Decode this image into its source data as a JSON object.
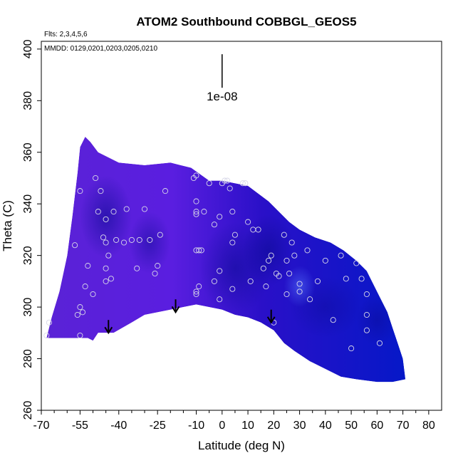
{
  "chart_data": {
    "type": "heatmap",
    "title": "ATOM2 Southbound COBBGL_GEOS5",
    "annotations": {
      "flights": "Flts: 2,3,4,5,6",
      "dates": "MMDD: 0129,0201,0203,0205,0210",
      "scale_label": "1e-08"
    },
    "xlabel": "Latitude (deg N)",
    "ylabel": "Theta (C)",
    "xlim": [
      -70,
      85
    ],
    "ylim": [
      260,
      403
    ],
    "xticks": [
      -70,
      -55,
      -40,
      -25,
      -10,
      0,
      10,
      20,
      30,
      40,
      50,
      60,
      70,
      80
    ],
    "yticks": [
      260,
      280,
      300,
      320,
      340,
      360,
      380,
      400
    ],
    "upper_boundary": [
      [
        -55,
        362
      ],
      [
        -53,
        366
      ],
      [
        -51,
        364
      ],
      [
        -48,
        360
      ],
      [
        -40,
        356
      ],
      [
        -30,
        355
      ],
      [
        -20,
        356
      ],
      [
        -12,
        354
      ],
      [
        -5,
        349
      ],
      [
        0,
        349
      ],
      [
        5,
        348
      ],
      [
        10,
        347
      ],
      [
        14,
        344
      ],
      [
        18,
        341
      ],
      [
        22,
        337
      ],
      [
        26,
        333
      ],
      [
        30,
        330
      ],
      [
        36,
        327
      ],
      [
        42,
        325
      ],
      [
        47,
        322
      ],
      [
        52,
        318
      ],
      [
        56,
        314
      ],
      [
        58,
        310
      ],
      [
        61,
        304
      ],
      [
        64,
        298
      ],
      [
        66,
        292
      ],
      [
        68,
        286
      ],
      [
        70,
        280
      ],
      [
        71,
        272
      ]
    ],
    "lower_boundary": [
      [
        71,
        272
      ],
      [
        66,
        271
      ],
      [
        60,
        271
      ],
      [
        52,
        272
      ],
      [
        46,
        273
      ],
      [
        40,
        276
      ],
      [
        34,
        279
      ],
      [
        28,
        283
      ],
      [
        24,
        286
      ],
      [
        20,
        291
      ],
      [
        15,
        294
      ],
      [
        10,
        296
      ],
      [
        5,
        297
      ],
      [
        0,
        299
      ],
      [
        -5,
        300
      ],
      [
        -10,
        301
      ],
      [
        -20,
        299
      ],
      [
        -30,
        297
      ],
      [
        -35,
        294
      ],
      [
        -42,
        290
      ],
      [
        -48,
        290
      ],
      [
        -50,
        287
      ],
      [
        -52,
        288
      ],
      [
        -68,
        288
      ],
      [
        -66,
        296
      ],
      [
        -63,
        306
      ],
      [
        -60,
        320
      ],
      [
        -58,
        335
      ],
      [
        -56,
        352
      ],
      [
        -55,
        362
      ]
    ],
    "dark_regions": [
      {
        "x": -45,
        "y": 335,
        "rx": 10,
        "ry": 16,
        "strength": 0.55
      },
      {
        "x": -28,
        "y": 325,
        "rx": 8,
        "ry": 12,
        "strength": 0.45
      },
      {
        "x": 5,
        "y": 315,
        "rx": 14,
        "ry": 18,
        "strength": 0.5
      },
      {
        "x": 18,
        "y": 322,
        "rx": 10,
        "ry": 14,
        "strength": 0.55
      },
      {
        "x": 40,
        "y": 300,
        "rx": 14,
        "ry": 12,
        "strength": 0.35
      },
      {
        "x": 60,
        "y": 295,
        "rx": 8,
        "ry": 10,
        "strength": 0.4
      }
    ],
    "light_regions": [
      {
        "x": 30,
        "y": 308,
        "rx": 6,
        "ry": 8,
        "strength": 0.5
      }
    ],
    "scale_bar": {
      "x": 0,
      "y_top": 398,
      "y_bottom": 385
    },
    "arrows": [
      {
        "x": -44,
        "y_top": 295,
        "y_bottom": 290
      },
      {
        "x": -18,
        "y_top": 303,
        "y_bottom": 298
      },
      {
        "x": 19,
        "y_top": 299,
        "y_bottom": 294
      }
    ],
    "points": [
      [
        -68,
        289
      ],
      [
        -67,
        294
      ],
      [
        -57,
        324
      ],
      [
        -55,
        345
      ],
      [
        -49,
        350
      ],
      [
        -47,
        345
      ],
      [
        -48,
        337
      ],
      [
        -45,
        334
      ],
      [
        -42,
        337
      ],
      [
        -46,
        327
      ],
      [
        -45,
        325
      ],
      [
        -44,
        320
      ],
      [
        -45,
        315
      ],
      [
        -43,
        311
      ],
      [
        -45,
        310
      ],
      [
        -50,
        305
      ],
      [
        -52,
        316
      ],
      [
        -53,
        308
      ],
      [
        -54,
        298
      ],
      [
        -55,
        300
      ],
      [
        -56,
        297
      ],
      [
        -55,
        289
      ],
      [
        -41,
        326
      ],
      [
        -38,
        325
      ],
      [
        -37,
        338
      ],
      [
        -35,
        326
      ],
      [
        -33,
        315
      ],
      [
        -32,
        326
      ],
      [
        -30,
        338
      ],
      [
        -28,
        326
      ],
      [
        -26,
        313
      ],
      [
        -25,
        316
      ],
      [
        -24,
        328
      ],
      [
        -22,
        345
      ],
      [
        -11,
        350
      ],
      [
        -10,
        351
      ],
      [
        -10,
        341
      ],
      [
        -10,
        337
      ],
      [
        -10,
        336
      ],
      [
        -10,
        322
      ],
      [
        -9,
        322
      ],
      [
        -8,
        322
      ],
      [
        -10,
        306
      ],
      [
        -10,
        305
      ],
      [
        -9,
        308
      ],
      [
        -7,
        337
      ],
      [
        -5,
        348
      ],
      [
        -3,
        332
      ],
      [
        -3,
        310
      ],
      [
        -1,
        303
      ],
      [
        -1,
        314
      ],
      [
        -1,
        335
      ],
      [
        0,
        348
      ],
      [
        1,
        349
      ],
      [
        2,
        349
      ],
      [
        3,
        346
      ],
      [
        4,
        337
      ],
      [
        4,
        325
      ],
      [
        4,
        307
      ],
      [
        5,
        328
      ],
      [
        8,
        348
      ],
      [
        9,
        348
      ],
      [
        10,
        333
      ],
      [
        11,
        310
      ],
      [
        12,
        330
      ],
      [
        14,
        330
      ],
      [
        16,
        315
      ],
      [
        17,
        308
      ],
      [
        18,
        318
      ],
      [
        19,
        320
      ],
      [
        20,
        294
      ],
      [
        21,
        313
      ],
      [
        22,
        312
      ],
      [
        24,
        328
      ],
      [
        25,
        318
      ],
      [
        25,
        305
      ],
      [
        26,
        313
      ],
      [
        27,
        325
      ],
      [
        28,
        320
      ],
      [
        30,
        306
      ],
      [
        30,
        309
      ],
      [
        33,
        322
      ],
      [
        34,
        303
      ],
      [
        37,
        310
      ],
      [
        40,
        318
      ],
      [
        43,
        295
      ],
      [
        46,
        320
      ],
      [
        48,
        311
      ],
      [
        50,
        284
      ],
      [
        52,
        317
      ],
      [
        54,
        311
      ],
      [
        56,
        297
      ],
      [
        56,
        305
      ],
      [
        56,
        291
      ],
      [
        61,
        286
      ]
    ]
  }
}
